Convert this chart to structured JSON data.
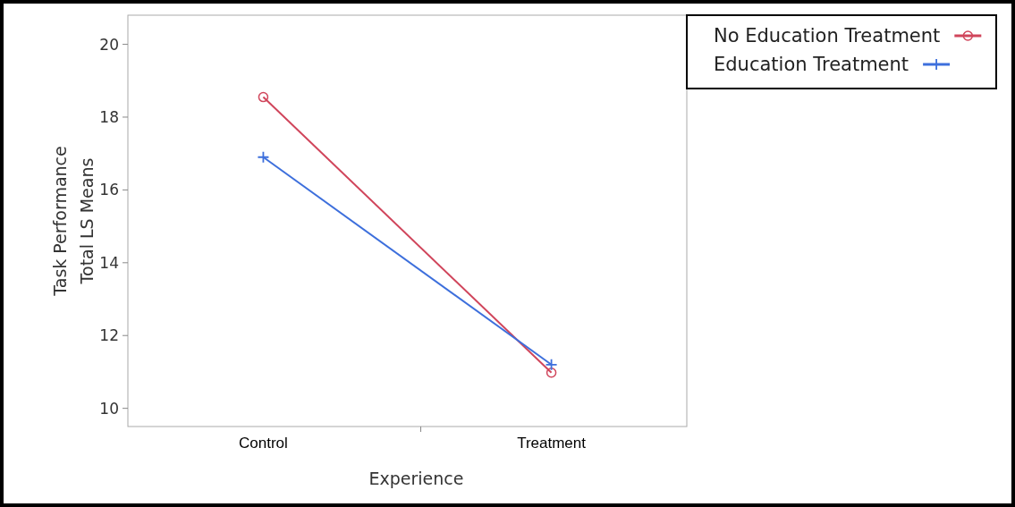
{
  "chart_data": {
    "type": "line",
    "xlabel": "Experience",
    "ylabel": "Task Performance\nTotal LS Means",
    "categories": [
      "Control",
      "Treatment"
    ],
    "series": [
      {
        "name": "No Education Treatment",
        "color": "#d0455b",
        "values": [
          18.55,
          10.98
        ],
        "marker": "circle"
      },
      {
        "name": "Education Treatment",
        "color": "#3d6fdc",
        "values": [
          16.9,
          11.2
        ],
        "marker": "cross"
      }
    ],
    "ylim": [
      9.5,
      20.8
    ],
    "yticks": [
      10,
      12,
      14,
      16,
      18,
      20
    ],
    "grid": false,
    "legend": "top right",
    "line_style": "solid"
  }
}
